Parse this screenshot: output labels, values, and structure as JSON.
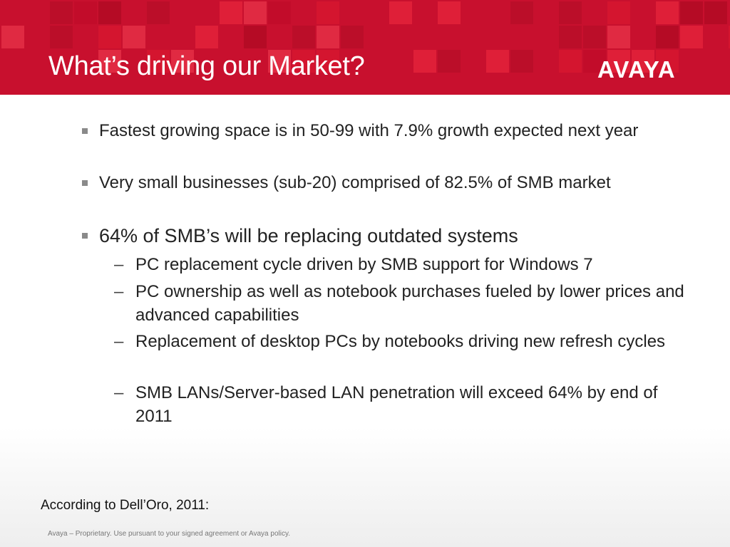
{
  "slide": {
    "title": "What’s driving our Market?",
    "logo": "AVAYA",
    "bullets": [
      {
        "text": "Fastest growing space is in 50-99 with 7.9% growth expected next year"
      },
      {
        "text": "Very small businesses (sub-20) comprised of 82.5% of SMB market"
      },
      {
        "text": "64% of SMB’s will be replacing outdated systems"
      }
    ],
    "sub_bullets": [
      {
        "dash": "–",
        "text": "PC replacement cycle driven by SMB support for Windows 7"
      },
      {
        "dash": "–",
        "text": "PC ownership as well as notebook purchases fueled by lower prices and advanced capabilities"
      },
      {
        "dash": "–",
        "text": "Replacement of desktop PCs by notebooks driving new refresh cycles"
      },
      {
        "dash": "–",
        "text": "SMB LANs/Server-based LAN penetration will exceed 64% by end of 2011"
      }
    ],
    "source_note": "According to Dell’Oro, 2011:",
    "footer": "Avaya – Proprietary. Use pursuant to your signed agreement or Avaya policy."
  },
  "colors": {
    "header_red": "#c8102e",
    "tile_shades": [
      "#d4152f",
      "#bb0e29",
      "#df1f38",
      "#c20c2a",
      "#e02a42",
      "#b50b25"
    ]
  }
}
